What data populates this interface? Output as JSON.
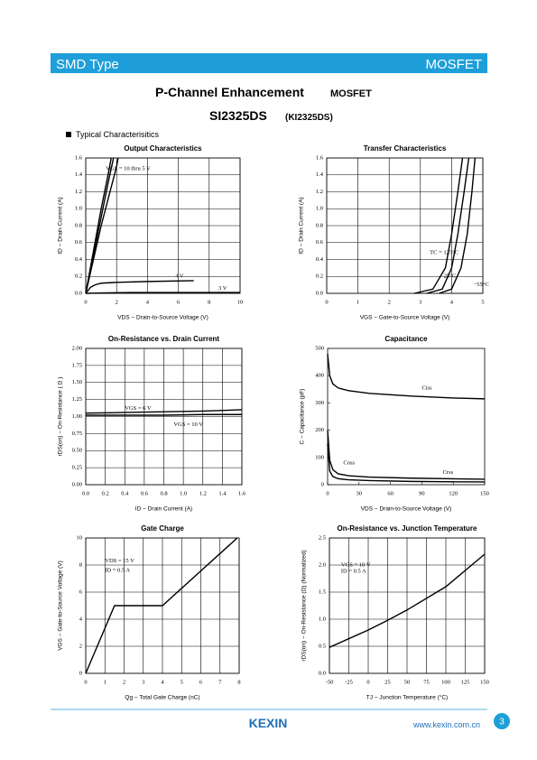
{
  "header": {
    "left": "SMD Type",
    "right": "MOSFET"
  },
  "title_main": "P-Channel Enhancement",
  "title_suffix": "MOSFET",
  "part": "SI2325DS",
  "alt_part": "(KI2325DS)",
  "section": "Typical  Characterisitics",
  "footer": {
    "logo": "KEXIN",
    "url": "www.kexin.com.cn",
    "page": "3"
  },
  "chart_data": [
    {
      "type": "line",
      "title": "Output Characteristics",
      "xlabel": "VDS − Drain-to-Source Voltage (V)",
      "ylabel": "ID − Drain Current (A)",
      "color": "#000000",
      "grid": true,
      "xlim": [
        0,
        10
      ],
      "xticks": [
        0,
        2,
        4,
        6,
        8,
        10
      ],
      "ylim": [
        0,
        1.6
      ],
      "yticks": [
        {
          "value": 0,
          "label": "0.0"
        },
        0.2,
        0.4,
        0.6,
        0.8,
        {
          "value": 1,
          "label": "1.0"
        },
        1.2,
        1.4,
        1.6
      ],
      "series": [
        {
          "x": [
            0,
            0.5,
            1,
            1.5,
            1.65
          ],
          "values": [
            0,
            0.5,
            1.0,
            1.45,
            1.6
          ]
        },
        {
          "x": [
            0,
            0.5,
            1,
            1.5,
            1.8
          ],
          "values": [
            0,
            0.45,
            0.9,
            1.35,
            1.6
          ]
        },
        {
          "x": [
            0,
            0.5,
            1,
            1.5,
            2,
            2.1
          ],
          "values": [
            0,
            0.4,
            0.8,
            1.15,
            1.5,
            1.6
          ]
        },
        {
          "x": [
            0,
            0.3,
            0.6,
            1,
            2,
            4,
            7
          ],
          "values": [
            0,
            0.07,
            0.1,
            0.12,
            0.13,
            0.14,
            0.15
          ]
        },
        {
          "x": [
            0,
            1,
            3,
            6,
            10
          ],
          "values": [
            0,
            0.005,
            0.01,
            0.01,
            0.01
          ]
        }
      ],
      "annotations": [
        "VGS = 10 thru 5 V",
        "4 V",
        "3 V"
      ]
    },
    {
      "type": "line",
      "title": "Transfer Characteristics",
      "xlabel": "VGS − Gate-to-Source Voltage (V)",
      "ylabel": "ID − Drain Current (A)",
      "color": "#000000",
      "grid": true,
      "xlim": [
        0,
        5
      ],
      "xticks": [
        0,
        1,
        2,
        3,
        4,
        5
      ],
      "ylim": [
        0,
        1.6
      ],
      "yticks": [
        {
          "value": 0,
          "label": "0.0"
        },
        0.2,
        0.4,
        0.6,
        0.8,
        {
          "value": 1,
          "label": "1.0"
        },
        1.2,
        1.4,
        1.6
      ],
      "series": [
        {
          "x": [
            2.8,
            3.4,
            3.8,
            4.0,
            4.2,
            4.35
          ],
          "values": [
            0,
            0.05,
            0.3,
            0.7,
            1.2,
            1.6
          ]
        },
        {
          "x": [
            3.2,
            3.7,
            4.0,
            4.2,
            4.4,
            4.55
          ],
          "values": [
            0,
            0.05,
            0.3,
            0.7,
            1.2,
            1.6
          ]
        },
        {
          "x": [
            3.6,
            4.0,
            4.3,
            4.5,
            4.65,
            4.75
          ],
          "values": [
            0,
            0.05,
            0.3,
            0.7,
            1.2,
            1.6
          ]
        }
      ],
      "annotations": [
        "TC = 125°C",
        "25°C",
        "−55°C"
      ]
    },
    {
      "type": "line",
      "title": "On-Resistance vs. Drain Current",
      "xlabel": "ID − Drain Current (A)",
      "ylabel": "rDS(on) − On-Resistance ( Ω )",
      "color": "#000000",
      "grid": true,
      "xlim": [
        0,
        1.6
      ],
      "xticks": [
        {
          "value": 0,
          "label": "0.0"
        },
        0.2,
        0.4,
        0.6,
        0.8,
        {
          "value": 1,
          "label": "1.0"
        },
        1.2,
        1.4,
        1.6
      ],
      "ylim": [
        0,
        2
      ],
      "yticks": [
        {
          "value": 0,
          "label": "0.00"
        },
        0.25,
        {
          "value": 0.5,
          "label": "0.50"
        },
        0.75,
        {
          "value": 1,
          "label": "1.00"
        },
        1.25,
        {
          "value": 1.5,
          "label": "1.50"
        },
        1.75,
        {
          "value": 2,
          "label": "2.00"
        }
      ],
      "series": [
        {
          "x": [
            0,
            0.4,
            0.8,
            1.2,
            1.6
          ],
          "values": [
            1.05,
            1.06,
            1.07,
            1.08,
            1.1
          ]
        },
        {
          "x": [
            0,
            0.4,
            0.8,
            1.2,
            1.6
          ],
          "values": [
            1.02,
            1.02,
            1.02,
            1.03,
            1.03
          ]
        }
      ],
      "annotations": [
        "VGS = 6 V",
        "VGS = 10 V"
      ]
    },
    {
      "type": "line",
      "title": "Capacitance",
      "xlabel": "VDS − Drain-to-Source Voltage (V)",
      "ylabel": "C − Capacitance (pF)",
      "color": "#000000",
      "grid": false,
      "xlim": [
        0,
        150
      ],
      "xticks": [
        0,
        30,
        60,
        90,
        120,
        150
      ],
      "ylim": [
        0,
        500
      ],
      "yticks": [
        0,
        100,
        200,
        300,
        400,
        500
      ],
      "series": [
        {
          "x": [
            0,
            2,
            5,
            10,
            20,
            40,
            80,
            120,
            150
          ],
          "values": [
            480,
            400,
            370,
            355,
            345,
            335,
            325,
            318,
            315
          ]
        },
        {
          "x": [
            0,
            2,
            5,
            10,
            20,
            40,
            80,
            150
          ],
          "values": [
            200,
            90,
            55,
            40,
            33,
            28,
            24,
            20
          ]
        },
        {
          "x": [
            0,
            2,
            5,
            10,
            20,
            40,
            80,
            150
          ],
          "values": [
            150,
            50,
            30,
            22,
            18,
            15,
            12,
            10
          ]
        }
      ],
      "annotations": [
        "Ciss",
        "Coss",
        "Crss"
      ]
    },
    {
      "type": "line",
      "title": "Gate Charge",
      "xlabel": "Qg − Total Gate Charge (nC)",
      "ylabel": "VGS − Gate-to-Source Voltage (V)",
      "color": "#000000",
      "grid": true,
      "xlim": [
        0,
        8
      ],
      "xticks": [
        0,
        1,
        2,
        3,
        4,
        5,
        6,
        7,
        8
      ],
      "ylim": [
        0,
        10
      ],
      "yticks": [
        0,
        2,
        4,
        6,
        8,
        10
      ],
      "series": [
        {
          "x": [
            0,
            1.5,
            4,
            7.9
          ],
          "values": [
            0,
            5,
            5,
            10
          ]
        }
      ],
      "annotations": [
        "VDS = 15 V",
        "ID = 0.5 A"
      ]
    },
    {
      "type": "line",
      "title": "On-Resistance vs. Junction Temperature",
      "xlabel": "TJ − Junction Temperature (°C)",
      "ylabel": "rDS(on) − On-Resistance (Ω) (Normalized)",
      "color": "#000000",
      "grid": true,
      "xlim": [
        -50,
        150
      ],
      "xticks": [
        -50,
        -25,
        0,
        25,
        50,
        75,
        100,
        125,
        150
      ],
      "ylim": [
        0,
        2.5
      ],
      "yticks": [
        {
          "value": 0,
          "label": "0.0"
        },
        0.5,
        {
          "value": 1,
          "label": "1.0"
        },
        1.5,
        {
          "value": 2,
          "label": "2.0"
        },
        2.5
      ],
      "series": [
        {
          "x": [
            -50,
            0,
            25,
            50,
            100,
            150
          ],
          "values": [
            0.48,
            0.8,
            0.98,
            1.17,
            1.6,
            2.2
          ]
        }
      ],
      "annotations": [
        "VGS = 10 V",
        "ID = 0.5 A"
      ]
    }
  ]
}
